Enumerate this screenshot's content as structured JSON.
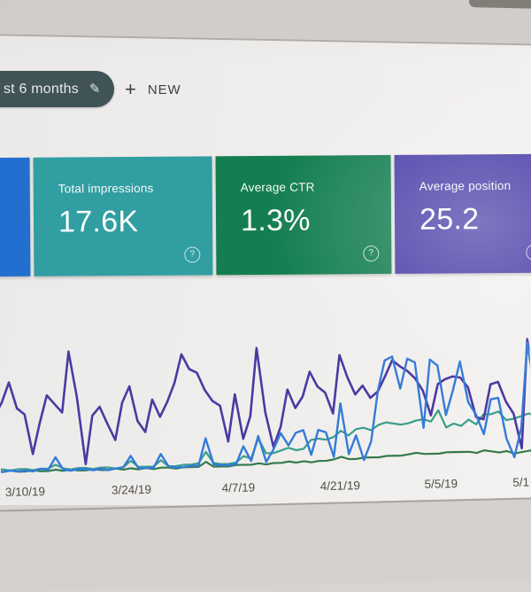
{
  "icons": {
    "edit_glyph": "✎",
    "plus_glyph": "+",
    "help_glyph": "?"
  },
  "toolbar": {
    "date_filter_chip": {
      "visible_label": "st 6 months"
    },
    "new_button": {
      "label": "NEW"
    }
  },
  "metric_cards": {
    "clicks_partial": {
      "color": "#1e6fd6"
    },
    "impressions": {
      "title": "Total impressions",
      "value": "17.6K",
      "color": "#2ba0a4"
    },
    "ctr": {
      "title": "Average CTR",
      "value": "1.3%",
      "color": "#0d7f4e"
    },
    "position": {
      "title": "Average position",
      "value": "25.2",
      "color": "#473aad"
    }
  },
  "chart_data": {
    "type": "line",
    "x_tick_labels": [
      "3/10/19",
      "3/24/19",
      "4/7/19",
      "4/21/19",
      "5/5/19",
      "5/1"
    ],
    "y_axis_visible": false,
    "grid": false,
    "legend": "none",
    "value_units": "relative height 0-100 (no y-axis labels shown)",
    "series": [
      {
        "name": "green-line",
        "color": "#2f7c4b",
        "width": 2.2,
        "values": [
          1,
          1,
          2,
          1,
          1,
          2,
          1,
          1,
          2,
          1,
          2,
          1,
          1,
          2,
          1,
          1,
          2,
          1,
          2,
          1,
          2,
          1,
          2,
          2,
          1,
          2,
          2,
          2,
          6,
          2,
          2,
          2,
          3,
          3,
          3,
          4,
          3,
          4,
          4,
          5,
          4,
          5,
          4,
          5,
          5,
          6,
          8,
          6,
          6,
          7,
          7,
          7,
          8,
          8,
          8,
          9,
          10,
          9,
          9,
          9,
          10,
          10,
          10,
          10,
          9,
          11,
          10,
          9,
          10,
          8,
          9,
          10,
          10
        ]
      },
      {
        "name": "teal-line",
        "color": "#36a08e",
        "width": 2.2,
        "values": [
          3,
          3,
          2,
          3,
          3,
          2,
          3,
          3,
          6,
          3,
          2,
          3,
          3,
          2,
          3,
          3,
          2,
          3,
          8,
          3,
          3,
          3,
          8,
          3,
          3,
          4,
          4,
          5,
          14,
          5,
          4,
          4,
          5,
          10,
          8,
          24,
          12,
          12,
          14,
          16,
          14,
          15,
          22,
          23,
          22,
          24,
          29,
          25,
          30,
          31,
          29,
          33,
          35,
          34,
          33,
          34,
          36,
          37,
          35,
          44,
          30,
          33,
          31,
          36,
          32,
          40,
          40,
          42,
          35,
          36,
          38,
          40,
          38
        ]
      },
      {
        "name": "purple-line",
        "color": "#4b37a8",
        "width": 2.6,
        "values": [
          46,
          57,
          73,
          52,
          47,
          15,
          40,
          62,
          55,
          48,
          97,
          60,
          6,
          45,
          52,
          38,
          25,
          55,
          68,
          40,
          31,
          57,
          43,
          55,
          70,
          93,
          81,
          78,
          64,
          55,
          51,
          22,
          60,
          24,
          42,
          97,
          45,
          17,
          33,
          63,
          48,
          57,
          77,
          65,
          60,
          43,
          90,
          72,
          58,
          65,
          55,
          60,
          72,
          85,
          80,
          76,
          70,
          60,
          40,
          65,
          69,
          71,
          70,
          62,
          38,
          36,
          64,
          66,
          50,
          40,
          12,
          100,
          57
        ]
      },
      {
        "name": "blue-line",
        "color": "#2e7bdf",
        "width": 2.4,
        "values": [
          2,
          1,
          2,
          1,
          2,
          1,
          3,
          2,
          12,
          2,
          1,
          2,
          2,
          1,
          2,
          1,
          2,
          3,
          12,
          2,
          2,
          2,
          13,
          3,
          2,
          2,
          3,
          3,
          25,
          4,
          3,
          3,
          4,
          18,
          6,
          26,
          5,
          15,
          28,
          18,
          28,
          30,
          10,
          30,
          28,
          8,
          51,
          10,
          25,
          5,
          20,
          60,
          85,
          88,
          62,
          86,
          83,
          30,
          85,
          80,
          40,
          60,
          83,
          50,
          40,
          24,
          52,
          53,
          20,
          5,
          29,
          97,
          50
        ]
      }
    ]
  }
}
